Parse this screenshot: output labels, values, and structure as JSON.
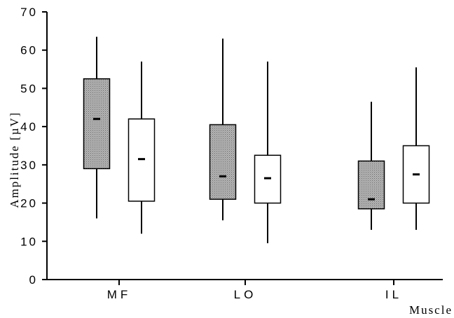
{
  "chart_data": {
    "type": "box",
    "xlabel": "Muscle",
    "ylabel": "Amplitude [µV]",
    "ylim": [
      0,
      70
    ],
    "yticks": [
      0,
      10,
      20,
      30,
      40,
      50,
      60,
      70
    ],
    "ytick_labels": [
      "0",
      "10",
      "20",
      "30",
      "40",
      "50",
      "60",
      "70"
    ],
    "categories": [
      "MF",
      "LO",
      "IL"
    ],
    "grid": false,
    "legend": "none",
    "series": [
      {
        "fill": "#a8a8a8",
        "boxes": [
          {
            "category": "MF",
            "min": 16,
            "q1": 29,
            "median": 42,
            "q3": 52.5,
            "max": 63.5
          },
          {
            "category": "LO",
            "min": 15.5,
            "q1": 21,
            "median": 27,
            "q3": 40.5,
            "max": 63
          },
          {
            "category": "IL",
            "min": 13,
            "q1": 18.5,
            "median": 21,
            "q3": 31,
            "max": 46.5
          }
        ]
      },
      {
        "fill": "#ffffff",
        "boxes": [
          {
            "category": "MF",
            "min": 12,
            "q1": 20.5,
            "median": 31.5,
            "q3": 42,
            "max": 57
          },
          {
            "category": "LO",
            "min": 9.5,
            "q1": 20,
            "median": 26.5,
            "q3": 32.5,
            "max": 57
          },
          {
            "category": "IL",
            "min": 13,
            "q1": 20,
            "median": 27.5,
            "q3": 35,
            "max": 55.5
          }
        ]
      }
    ]
  }
}
